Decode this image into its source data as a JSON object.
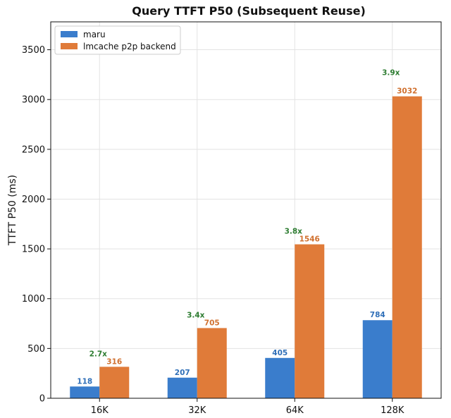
{
  "chart_data": {
    "type": "bar",
    "title": "Query TTFT P50 (Subsequent Reuse)",
    "xlabel": "",
    "ylabel": "TTFT P50 (ms)",
    "categories": [
      "16K",
      "32K",
      "64K",
      "128K"
    ],
    "series": [
      {
        "name": "maru",
        "values": [
          118,
          207,
          405,
          784
        ],
        "color": "#3a7dcc"
      },
      {
        "name": "lmcache p2p backend",
        "values": [
          316,
          705,
          1546,
          3032
        ],
        "color": "#e07b39"
      }
    ],
    "ratio_labels": [
      "2.7x",
      "3.4x",
      "3.8x",
      "3.9x"
    ],
    "ratio_color": "#2e7d32",
    "ylim": [
      0,
      3780
    ],
    "yticks": [
      0,
      500,
      1000,
      1500,
      2000,
      2500,
      3000,
      3500
    ],
    "grid": true,
    "legend_position": "top-left"
  }
}
